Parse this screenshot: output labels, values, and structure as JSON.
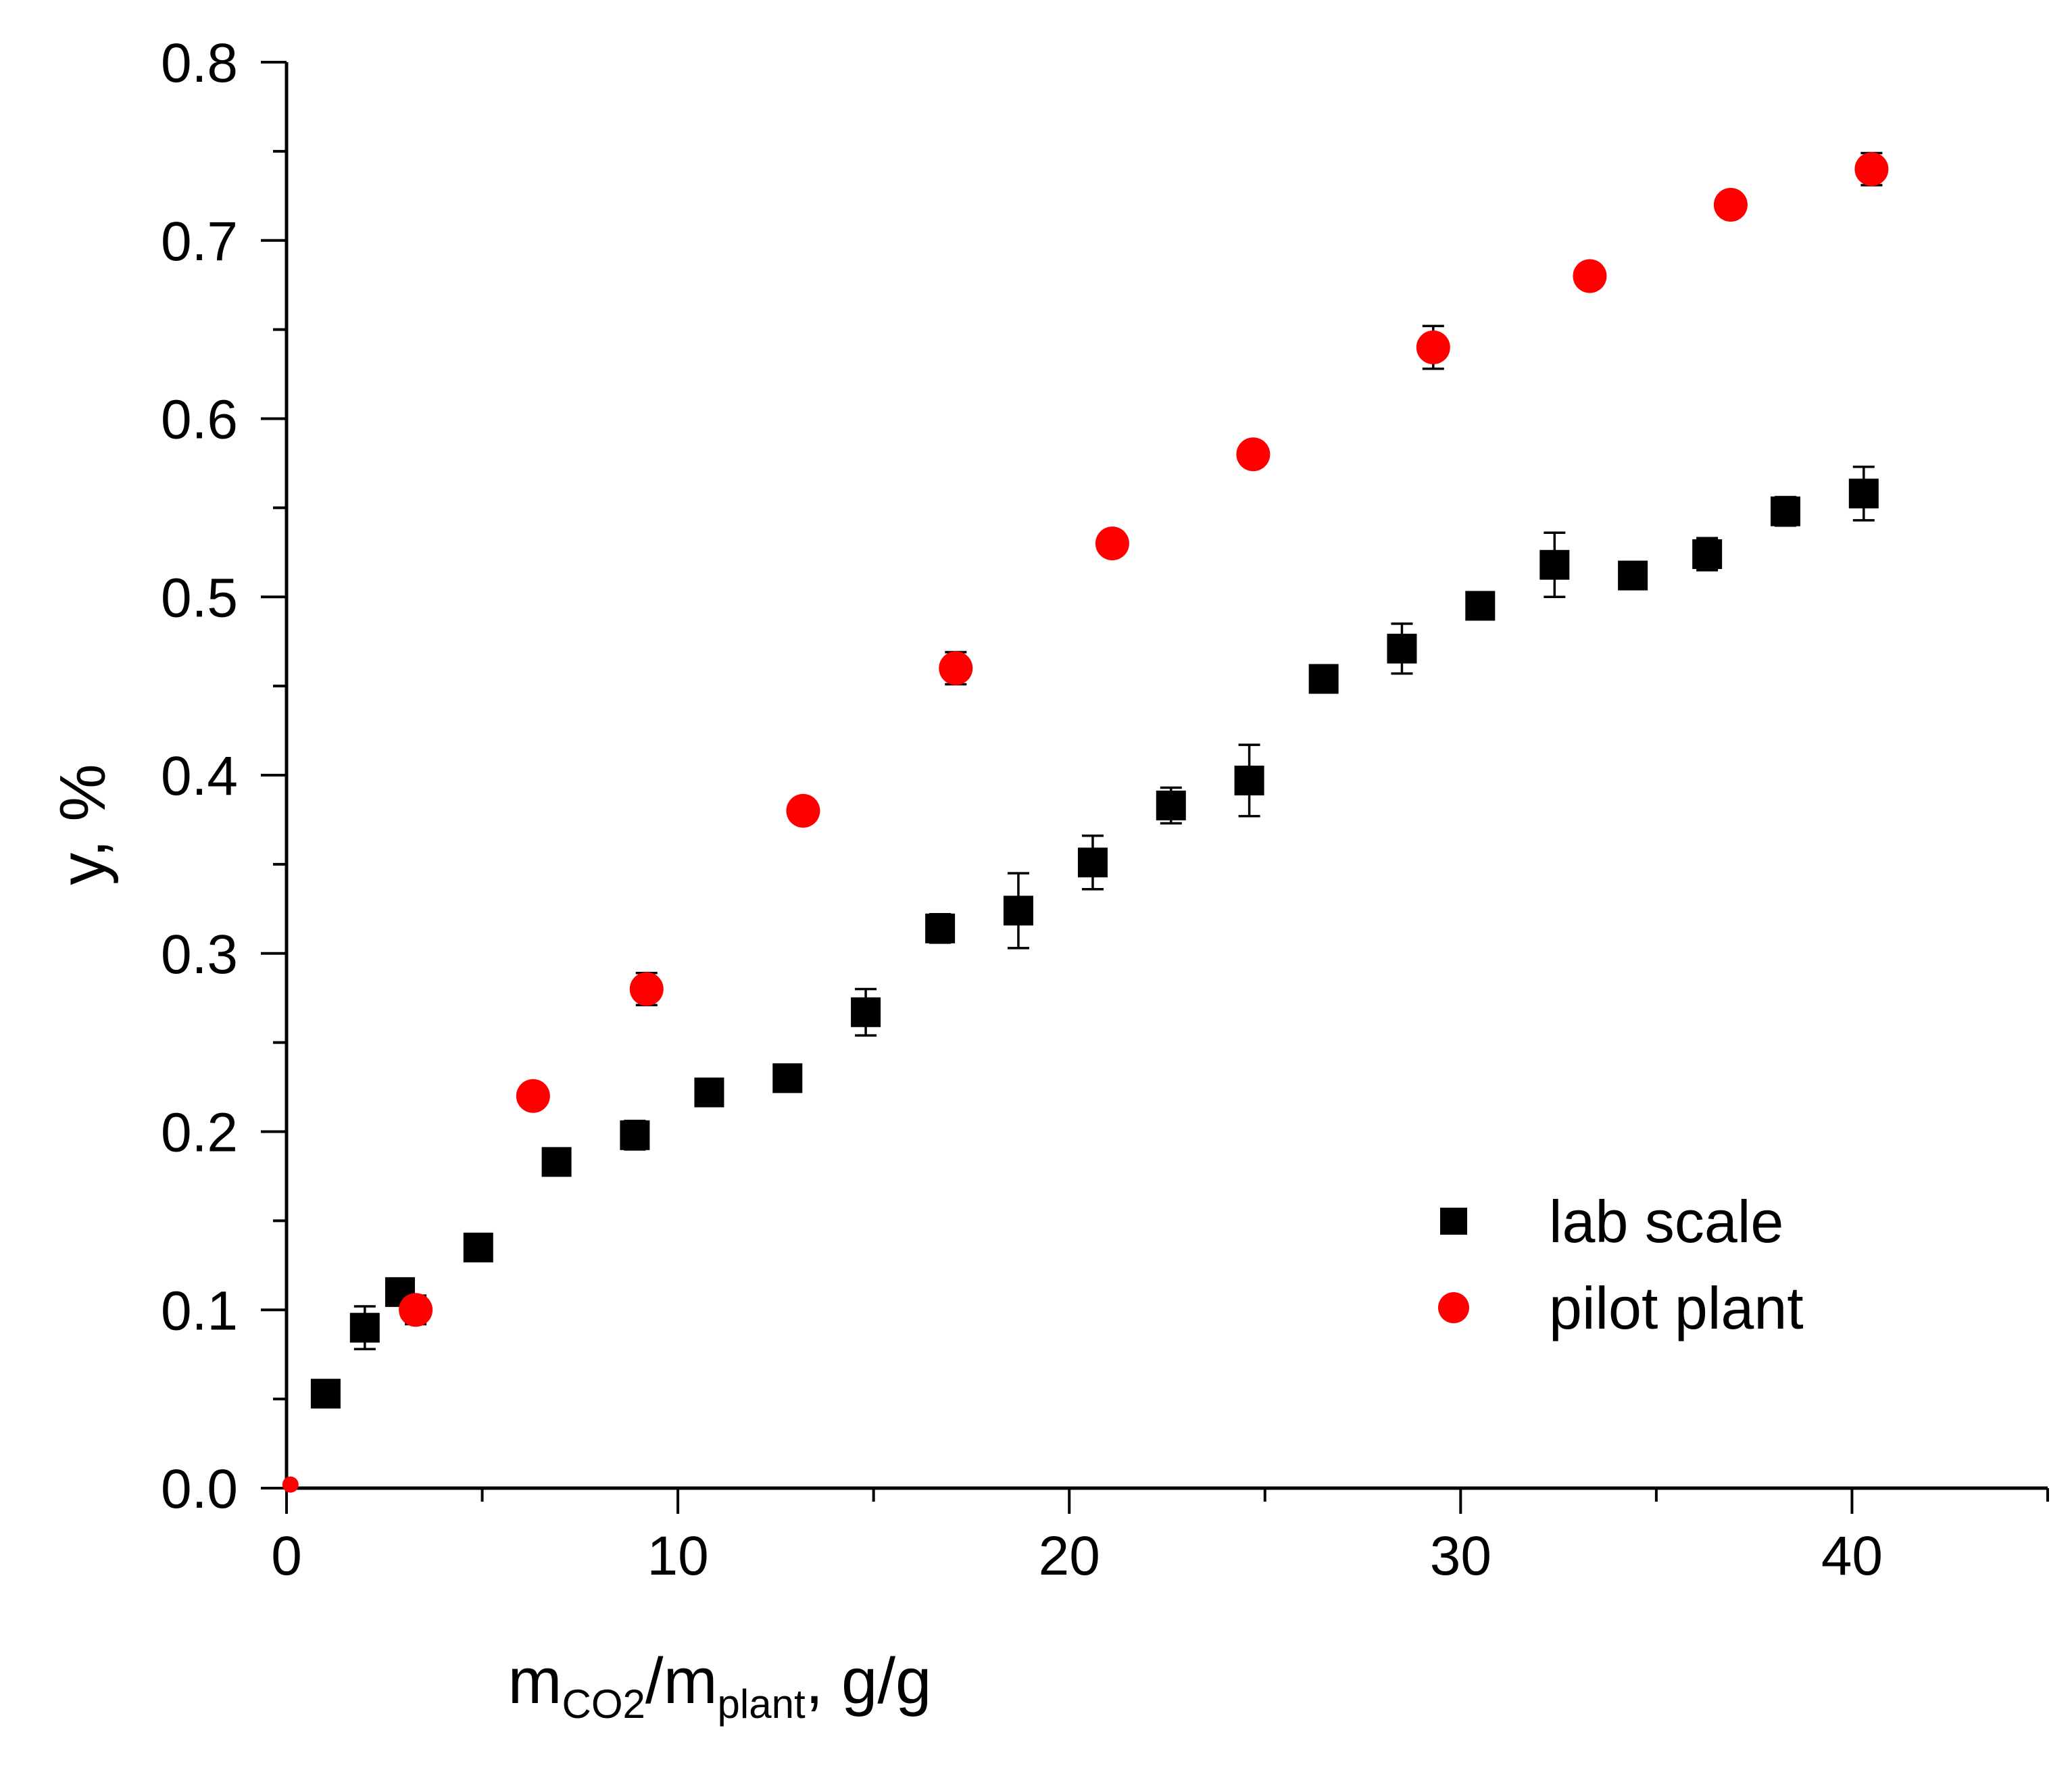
{
  "chart_data": {
    "type": "scatter",
    "title": "",
    "xlabel": {
      "main": "m",
      "sub1": "CO2",
      "mid": "/m",
      "sub2": "plant",
      "tail": ", g/g"
    },
    "ylabel": "y, %",
    "xlim": [
      0,
      45
    ],
    "ylim": [
      0,
      0.8
    ],
    "x_ticks": [
      "0",
      "10",
      "20",
      "30",
      "40"
    ],
    "x_tick_values": [
      0,
      10,
      20,
      30,
      40
    ],
    "x_minor_tick_values": [
      5,
      15,
      25,
      35,
      45
    ],
    "y_ticks": [
      "0.0",
      "0.1",
      "0.2",
      "0.3",
      "0.4",
      "0.5",
      "0.6",
      "0.7",
      "0.8"
    ],
    "y_tick_values": [
      0,
      0.1,
      0.2,
      0.3,
      0.4,
      0.5,
      0.6,
      0.7,
      0.8
    ],
    "grid": false,
    "legend_position": "bottom-right",
    "series": [
      {
        "name": "lab scale",
        "marker": "square",
        "color": "#000000",
        "points": [
          {
            "x": 1.0,
            "y": 0.053,
            "err": 0.006
          },
          {
            "x": 2.0,
            "y": 0.09,
            "err": 0.012
          },
          {
            "x": 2.9,
            "y": 0.11,
            "err": 0.005
          },
          {
            "x": 4.9,
            "y": 0.135,
            "err": 0.007
          },
          {
            "x": 6.9,
            "y": 0.183,
            "err": 0.005
          },
          {
            "x": 8.9,
            "y": 0.198,
            "err": 0.008
          },
          {
            "x": 10.8,
            "y": 0.222,
            "err": 0.006
          },
          {
            "x": 12.8,
            "y": 0.23,
            "err": 0.005
          },
          {
            "x": 14.8,
            "y": 0.267,
            "err": 0.013
          },
          {
            "x": 16.7,
            "y": 0.314,
            "err": 0.008
          },
          {
            "x": 18.7,
            "y": 0.324,
            "err": 0.021
          },
          {
            "x": 20.6,
            "y": 0.351,
            "err": 0.015
          },
          {
            "x": 22.6,
            "y": 0.383,
            "err": 0.01
          },
          {
            "x": 24.6,
            "y": 0.397,
            "err": 0.02
          },
          {
            "x": 26.5,
            "y": 0.454,
            "err": 0.007
          },
          {
            "x": 28.5,
            "y": 0.471,
            "err": 0.014
          },
          {
            "x": 30.5,
            "y": 0.495,
            "err": 0.006
          },
          {
            "x": 32.4,
            "y": 0.518,
            "err": 0.018
          },
          {
            "x": 34.4,
            "y": 0.512,
            "err": 0.005
          },
          {
            "x": 36.3,
            "y": 0.524,
            "err": 0.009
          },
          {
            "x": 38.3,
            "y": 0.548,
            "err": 0.008
          },
          {
            "x": 40.3,
            "y": 0.558,
            "err": 0.015
          }
        ]
      },
      {
        "name": "pilot plant",
        "marker": "circle",
        "color": "#ff0000",
        "points": [
          {
            "x": 0.1,
            "y": 0.002,
            "err": 0
          },
          {
            "x": 3.3,
            "y": 0.1,
            "err": 0.008
          },
          {
            "x": 6.3,
            "y": 0.22,
            "err": 0.004
          },
          {
            "x": 9.2,
            "y": 0.28,
            "err": 0.009
          },
          {
            "x": 13.2,
            "y": 0.38,
            "err": 0.004
          },
          {
            "x": 17.1,
            "y": 0.46,
            "err": 0.009
          },
          {
            "x": 21.1,
            "y": 0.53,
            "err": 0.004
          },
          {
            "x": 24.7,
            "y": 0.58,
            "err": 0.004
          },
          {
            "x": 29.3,
            "y": 0.64,
            "err": 0.012
          },
          {
            "x": 33.3,
            "y": 0.68,
            "err": 0.004
          },
          {
            "x": 36.9,
            "y": 0.72,
            "err": 0.004
          },
          {
            "x": 40.5,
            "y": 0.74,
            "err": 0.009
          }
        ]
      }
    ]
  }
}
